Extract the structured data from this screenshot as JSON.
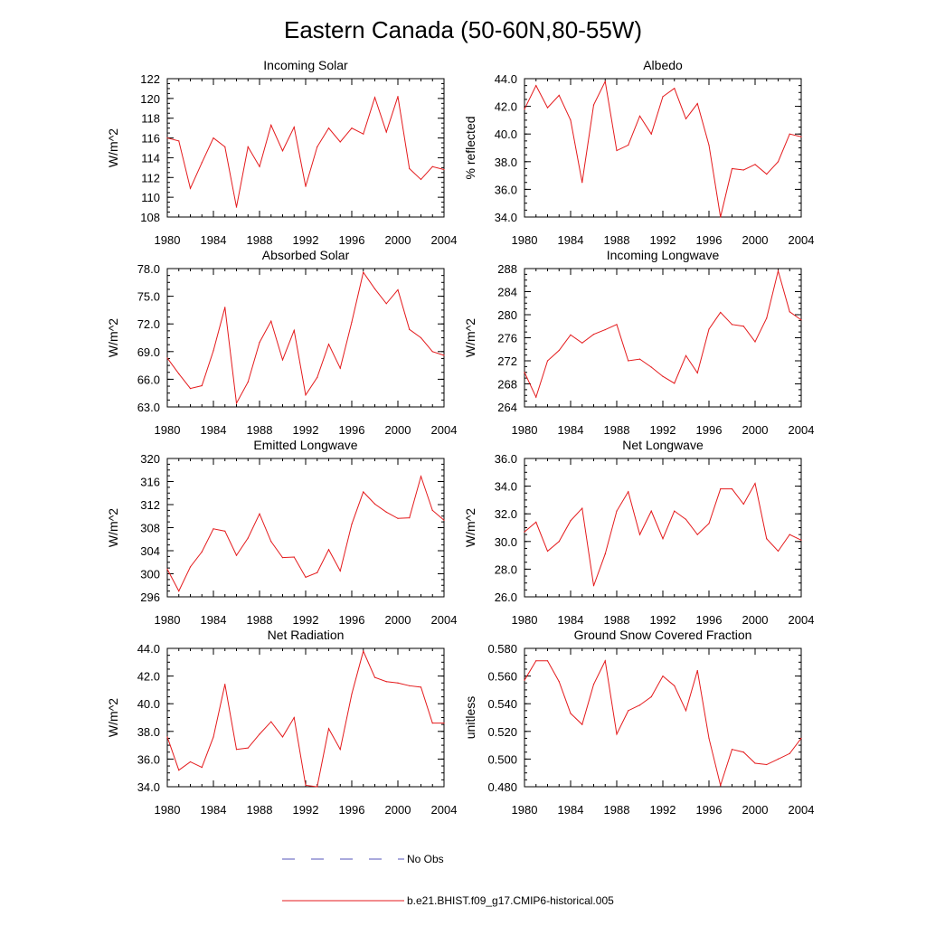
{
  "figure": {
    "title": "Eastern Canada (50-60N,80-55W)",
    "series_color": "#e41a1c",
    "obs_color": "#5555bb"
  },
  "legend": {
    "obs_label": "No Obs",
    "model_label": "b.e21.BHIST.f09_g17.CMIP6-historical.005"
  },
  "chart_data": [
    {
      "type": "line",
      "title": "Incoming Solar",
      "ylabel": "W/m^2",
      "xlabel": "",
      "xlim": [
        1980,
        2004
      ],
      "ylim": [
        108,
        122
      ],
      "xticks": [
        "1980",
        "1984",
        "1988",
        "1992",
        "1996",
        "2000",
        "2004"
      ],
      "yticks": [
        "108",
        "110",
        "112",
        "114",
        "116",
        "118",
        "120",
        "122"
      ],
      "x": [
        1980,
        1981,
        1982,
        1983,
        1984,
        1985,
        1986,
        1987,
        1988,
        1989,
        1990,
        1991,
        1992,
        1993,
        1994,
        1995,
        1996,
        1997,
        1998,
        1999,
        2000,
        2001,
        2002,
        2003,
        2004
      ],
      "series": [
        {
          "name": "b.e21.BHIST.f09_g17.CMIP6-historical.005",
          "values": [
            116.0,
            115.7,
            110.9,
            113.5,
            116.0,
            115.1,
            109.0,
            115.1,
            113.1,
            117.3,
            114.7,
            117.1,
            111.1,
            115.1,
            117.0,
            115.6,
            117.0,
            116.4,
            120.1,
            116.6,
            120.2,
            112.9,
            111.8,
            113.1,
            112.8
          ]
        }
      ]
    },
    {
      "type": "line",
      "title": "Albedo",
      "ylabel": "% reflected",
      "xlabel": "",
      "xlim": [
        1980,
        2004
      ],
      "ylim": [
        34.0,
        44.0
      ],
      "xticks": [
        "1980",
        "1984",
        "1988",
        "1992",
        "1996",
        "2000",
        "2004"
      ],
      "yticks": [
        "34.0",
        "36.0",
        "38.0",
        "40.0",
        "42.0",
        "44.0"
      ],
      "x": [
        1980,
        1981,
        1982,
        1983,
        1984,
        1985,
        1986,
        1987,
        1988,
        1989,
        1990,
        1991,
        1992,
        1993,
        1994,
        1995,
        1996,
        1997,
        1998,
        1999,
        2000,
        2001,
        2002,
        2003,
        2004
      ],
      "series": [
        {
          "name": "b.e21.BHIST.f09_g17.CMIP6-historical.005",
          "values": [
            41.8,
            43.5,
            41.9,
            42.8,
            41.0,
            36.5,
            42.1,
            43.8,
            38.8,
            39.2,
            41.3,
            40.0,
            42.7,
            43.3,
            41.1,
            42.2,
            39.2,
            34.0,
            37.5,
            37.4,
            37.8,
            37.1,
            38.0,
            40.0,
            39.8
          ]
        }
      ]
    },
    {
      "type": "line",
      "title": "Absorbed Solar",
      "ylabel": "W/m^2",
      "xlabel": "",
      "xlim": [
        1980,
        2004
      ],
      "ylim": [
        63.0,
        78.0
      ],
      "xticks": [
        "1980",
        "1984",
        "1988",
        "1992",
        "1996",
        "2000",
        "2004"
      ],
      "yticks": [
        "63.0",
        "66.0",
        "69.0",
        "72.0",
        "75.0",
        "78.0"
      ],
      "x": [
        1980,
        1981,
        1982,
        1983,
        1984,
        1985,
        1986,
        1987,
        1988,
        1989,
        1990,
        1991,
        1992,
        1993,
        1994,
        1995,
        1996,
        1997,
        1998,
        1999,
        2000,
        2001,
        2002,
        2003,
        2004
      ],
      "series": [
        {
          "name": "b.e21.BHIST.f09_g17.CMIP6-historical.005",
          "values": [
            68.3,
            66.6,
            65.0,
            65.3,
            69.1,
            73.8,
            63.4,
            65.7,
            70.0,
            72.3,
            68.1,
            71.3,
            64.3,
            66.2,
            69.8,
            67.2,
            72.2,
            77.6,
            75.8,
            74.2,
            75.7,
            71.4,
            70.5,
            69.0,
            68.6
          ]
        }
      ]
    },
    {
      "type": "line",
      "title": "Incoming Longwave",
      "ylabel": "W/m^2",
      "xlabel": "",
      "xlim": [
        1980,
        2004
      ],
      "ylim": [
        264,
        288
      ],
      "xticks": [
        "1980",
        "1984",
        "1988",
        "1992",
        "1996",
        "2000",
        "2004"
      ],
      "yticks": [
        "264",
        "268",
        "272",
        "276",
        "280",
        "284",
        "288"
      ],
      "x": [
        1980,
        1981,
        1982,
        1983,
        1984,
        1985,
        1986,
        1987,
        1988,
        1989,
        1990,
        1991,
        1992,
        1993,
        1994,
        1995,
        1996,
        1997,
        1998,
        1999,
        2000,
        2001,
        2002,
        2003,
        2004
      ],
      "series": [
        {
          "name": "b.e21.BHIST.f09_g17.CMIP6-historical.005",
          "values": [
            270.0,
            265.7,
            272.0,
            273.8,
            276.5,
            275.1,
            276.6,
            277.4,
            278.3,
            272.0,
            272.3,
            270.9,
            269.3,
            268.1,
            272.9,
            269.9,
            277.5,
            280.4,
            278.3,
            278.0,
            275.3,
            279.4,
            287.6,
            280.5,
            279.1
          ]
        }
      ]
    },
    {
      "type": "line",
      "title": "Emitted Longwave",
      "ylabel": "W/m^2",
      "xlabel": "",
      "xlim": [
        1980,
        2004
      ],
      "ylim": [
        296,
        320
      ],
      "xticks": [
        "1980",
        "1984",
        "1988",
        "1992",
        "1996",
        "2000",
        "2004"
      ],
      "yticks": [
        "296",
        "300",
        "304",
        "308",
        "312",
        "316",
        "320"
      ],
      "x": [
        1980,
        1981,
        1982,
        1983,
        1984,
        1985,
        1986,
        1987,
        1988,
        1989,
        1990,
        1991,
        1992,
        1993,
        1994,
        1995,
        1996,
        1997,
        1998,
        1999,
        2000,
        2001,
        2002,
        2003,
        2004
      ],
      "series": [
        {
          "name": "b.e21.BHIST.f09_g17.CMIP6-historical.005",
          "values": [
            300.8,
            297.0,
            301.2,
            303.8,
            307.8,
            307.4,
            303.2,
            306.2,
            310.4,
            305.6,
            302.8,
            302.9,
            299.4,
            300.2,
            304.2,
            300.5,
            308.6,
            314.2,
            312.1,
            310.7,
            309.6,
            309.7,
            316.9,
            311.0,
            309.3
          ]
        }
      ]
    },
    {
      "type": "line",
      "title": "Net Longwave",
      "ylabel": "W/m^2",
      "xlabel": "",
      "xlim": [
        1980,
        2004
      ],
      "ylim": [
        26.0,
        36.0
      ],
      "xticks": [
        "1980",
        "1984",
        "1988",
        "1992",
        "1996",
        "2000",
        "2004"
      ],
      "yticks": [
        "26.0",
        "28.0",
        "30.0",
        "32.0",
        "34.0",
        "36.0"
      ],
      "x": [
        1980,
        1981,
        1982,
        1983,
        1984,
        1985,
        1986,
        1987,
        1988,
        1989,
        1990,
        1991,
        1992,
        1993,
        1994,
        1995,
        1996,
        1997,
        1998,
        1999,
        2000,
        2001,
        2002,
        2003,
        2004
      ],
      "series": [
        {
          "name": "b.e21.BHIST.f09_g17.CMIP6-historical.005",
          "values": [
            30.7,
            31.4,
            29.3,
            30.0,
            31.5,
            32.4,
            26.8,
            29.1,
            32.2,
            33.6,
            30.5,
            32.2,
            30.2,
            32.2,
            31.6,
            30.5,
            31.3,
            33.8,
            33.8,
            32.7,
            34.2,
            30.2,
            29.3,
            30.5,
            30.1
          ]
        }
      ]
    },
    {
      "type": "line",
      "title": "Net Radiation",
      "ylabel": "W/m^2",
      "xlabel": "",
      "xlim": [
        1980,
        2004
      ],
      "ylim": [
        34.0,
        44.0
      ],
      "xticks": [
        "1980",
        "1984",
        "1988",
        "1992",
        "1996",
        "2000",
        "2004"
      ],
      "yticks": [
        "34.0",
        "36.0",
        "38.0",
        "40.0",
        "42.0",
        "44.0"
      ],
      "x": [
        1980,
        1981,
        1982,
        1983,
        1984,
        1985,
        1986,
        1987,
        1988,
        1989,
        1990,
        1991,
        1992,
        1993,
        1994,
        1995,
        1996,
        1997,
        1998,
        1999,
        2000,
        2001,
        2002,
        2003,
        2004
      ],
      "series": [
        {
          "name": "b.e21.BHIST.f09_g17.CMIP6-historical.005",
          "values": [
            37.6,
            35.2,
            35.8,
            35.4,
            37.6,
            41.4,
            36.7,
            36.8,
            37.8,
            38.7,
            37.6,
            39.0,
            34.1,
            34.0,
            38.2,
            36.7,
            40.7,
            43.8,
            41.9,
            41.6,
            41.5,
            41.3,
            41.2,
            38.6,
            38.6
          ]
        }
      ]
    },
    {
      "type": "line",
      "title": "Ground Snow Covered Fraction",
      "ylabel": "unitless",
      "xlabel": "",
      "xlim": [
        1980,
        2004
      ],
      "ylim": [
        0.48,
        0.58
      ],
      "xticks": [
        "1980",
        "1984",
        "1988",
        "1992",
        "1996",
        "2000",
        "2004"
      ],
      "yticks": [
        "0.480",
        "0.500",
        "0.520",
        "0.540",
        "0.560",
        "0.580"
      ],
      "x": [
        1980,
        1981,
        1982,
        1983,
        1984,
        1985,
        1986,
        1987,
        1988,
        1989,
        1990,
        1991,
        1992,
        1993,
        1994,
        1995,
        1996,
        1997,
        1998,
        1999,
        2000,
        2001,
        2002,
        2003,
        2004
      ],
      "series": [
        {
          "name": "b.e21.BHIST.f09_g17.CMIP6-historical.005",
          "values": [
            0.557,
            0.571,
            0.571,
            0.556,
            0.533,
            0.525,
            0.554,
            0.571,
            0.518,
            0.535,
            0.539,
            0.545,
            0.56,
            0.553,
            0.535,
            0.564,
            0.515,
            0.481,
            0.507,
            0.505,
            0.497,
            0.496,
            0.5,
            0.504,
            0.515
          ]
        }
      ]
    }
  ]
}
